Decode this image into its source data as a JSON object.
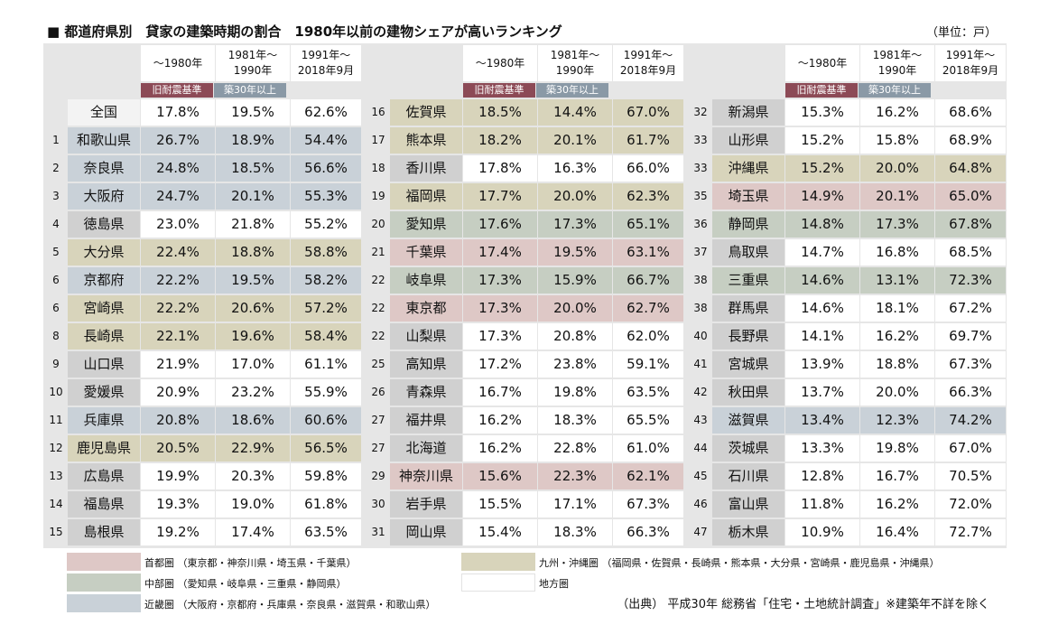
{
  "title": "■ 都道府県別　貸家の建築時期の割合　1980年以前の建物シェアが高いランキング",
  "unit": "（単位：戸）",
  "headers": {
    "col1": "〜1980年",
    "col2_line1": "1981年〜",
    "col2_line2": "1990年",
    "col3_line1": "1991年〜",
    "col3_line2": "2018年9月",
    "tag_old": "旧耐震基準",
    "tag_age": "築30年以上"
  },
  "region_colors": {
    "s": "#dec8c6",
    "ch": "#c6cec2",
    "k": "#c9d1d8",
    "c9": "#d8d4bb",
    "r": "#ffffff"
  },
  "rows": [
    {
      "rank": "",
      "pref": "全国",
      "v1": "17.8%",
      "v2": "19.5%",
      "v3": "62.6%",
      "region": "n"
    },
    {
      "rank": "1",
      "pref": "和歌山県",
      "v1": "26.7%",
      "v2": "18.9%",
      "v3": "54.4%",
      "region": "k"
    },
    {
      "rank": "2",
      "pref": "奈良県",
      "v1": "24.8%",
      "v2": "18.5%",
      "v3": "56.6%",
      "region": "k"
    },
    {
      "rank": "3",
      "pref": "大阪府",
      "v1": "24.7%",
      "v2": "20.1%",
      "v3": "55.3%",
      "region": "k"
    },
    {
      "rank": "4",
      "pref": "徳島県",
      "v1": "23.0%",
      "v2": "21.8%",
      "v3": "55.2%",
      "region": "r"
    },
    {
      "rank": "5",
      "pref": "大分県",
      "v1": "22.4%",
      "v2": "18.8%",
      "v3": "58.8%",
      "region": "c9"
    },
    {
      "rank": "6",
      "pref": "京都府",
      "v1": "22.2%",
      "v2": "19.5%",
      "v3": "58.2%",
      "region": "k"
    },
    {
      "rank": "6",
      "pref": "宮崎県",
      "v1": "22.2%",
      "v2": "20.6%",
      "v3": "57.2%",
      "region": "c9"
    },
    {
      "rank": "8",
      "pref": "長崎県",
      "v1": "22.1%",
      "v2": "19.6%",
      "v3": "58.4%",
      "region": "c9"
    },
    {
      "rank": "9",
      "pref": "山口県",
      "v1": "21.9%",
      "v2": "17.0%",
      "v3": "61.1%",
      "region": "r"
    },
    {
      "rank": "10",
      "pref": "愛媛県",
      "v1": "20.9%",
      "v2": "23.2%",
      "v3": "55.9%",
      "region": "r"
    },
    {
      "rank": "11",
      "pref": "兵庫県",
      "v1": "20.8%",
      "v2": "18.6%",
      "v3": "60.6%",
      "region": "k"
    },
    {
      "rank": "12",
      "pref": "鹿児島県",
      "v1": "20.5%",
      "v2": "22.9%",
      "v3": "56.5%",
      "region": "c9"
    },
    {
      "rank": "13",
      "pref": "広島県",
      "v1": "19.9%",
      "v2": "20.3%",
      "v3": "59.8%",
      "region": "r"
    },
    {
      "rank": "14",
      "pref": "福島県",
      "v1": "19.3%",
      "v2": "19.0%",
      "v3": "61.8%",
      "region": "r"
    },
    {
      "rank": "15",
      "pref": "島根県",
      "v1": "19.2%",
      "v2": "17.4%",
      "v3": "63.5%",
      "region": "r"
    },
    {
      "rank": "16",
      "pref": "佐賀県",
      "v1": "18.5%",
      "v2": "14.4%",
      "v3": "67.0%",
      "region": "c9"
    },
    {
      "rank": "17",
      "pref": "熊本県",
      "v1": "18.2%",
      "v2": "20.1%",
      "v3": "61.7%",
      "region": "c9"
    },
    {
      "rank": "18",
      "pref": "香川県",
      "v1": "17.8%",
      "v2": "16.3%",
      "v3": "66.0%",
      "region": "r"
    },
    {
      "rank": "19",
      "pref": "福岡県",
      "v1": "17.7%",
      "v2": "20.0%",
      "v3": "62.3%",
      "region": "c9"
    },
    {
      "rank": "20",
      "pref": "愛知県",
      "v1": "17.6%",
      "v2": "17.3%",
      "v3": "65.1%",
      "region": "ch"
    },
    {
      "rank": "21",
      "pref": "千葉県",
      "v1": "17.4%",
      "v2": "19.5%",
      "v3": "63.1%",
      "region": "s"
    },
    {
      "rank": "22",
      "pref": "岐阜県",
      "v1": "17.3%",
      "v2": "15.9%",
      "v3": "66.7%",
      "region": "ch"
    },
    {
      "rank": "22",
      "pref": "東京都",
      "v1": "17.3%",
      "v2": "20.0%",
      "v3": "62.7%",
      "region": "s"
    },
    {
      "rank": "22",
      "pref": "山梨県",
      "v1": "17.3%",
      "v2": "20.8%",
      "v3": "62.0%",
      "region": "r"
    },
    {
      "rank": "25",
      "pref": "高知県",
      "v1": "17.2%",
      "v2": "23.8%",
      "v3": "59.1%",
      "region": "r"
    },
    {
      "rank": "26",
      "pref": "青森県",
      "v1": "16.7%",
      "v2": "19.8%",
      "v3": "63.5%",
      "region": "r"
    },
    {
      "rank": "27",
      "pref": "福井県",
      "v1": "16.2%",
      "v2": "18.3%",
      "v3": "65.5%",
      "region": "r"
    },
    {
      "rank": "27",
      "pref": "北海道",
      "v1": "16.2%",
      "v2": "22.8%",
      "v3": "61.0%",
      "region": "r"
    },
    {
      "rank": "29",
      "pref": "神奈川県",
      "v1": "15.6%",
      "v2": "22.3%",
      "v3": "62.1%",
      "region": "s"
    },
    {
      "rank": "30",
      "pref": "岩手県",
      "v1": "15.5%",
      "v2": "17.1%",
      "v3": "67.3%",
      "region": "r"
    },
    {
      "rank": "31",
      "pref": "岡山県",
      "v1": "15.4%",
      "v2": "18.3%",
      "v3": "66.3%",
      "region": "r"
    },
    {
      "rank": "32",
      "pref": "新潟県",
      "v1": "15.3%",
      "v2": "16.2%",
      "v3": "68.6%",
      "region": "r"
    },
    {
      "rank": "33",
      "pref": "山形県",
      "v1": "15.2%",
      "v2": "15.8%",
      "v3": "68.9%",
      "region": "r"
    },
    {
      "rank": "33",
      "pref": "沖縄県",
      "v1": "15.2%",
      "v2": "20.0%",
      "v3": "64.8%",
      "region": "c9"
    },
    {
      "rank": "35",
      "pref": "埼玉県",
      "v1": "14.9%",
      "v2": "20.1%",
      "v3": "65.0%",
      "region": "s"
    },
    {
      "rank": "36",
      "pref": "静岡県",
      "v1": "14.8%",
      "v2": "17.3%",
      "v3": "67.8%",
      "region": "ch"
    },
    {
      "rank": "37",
      "pref": "鳥取県",
      "v1": "14.7%",
      "v2": "16.8%",
      "v3": "68.5%",
      "region": "r"
    },
    {
      "rank": "38",
      "pref": "三重県",
      "v1": "14.6%",
      "v2": "13.1%",
      "v3": "72.3%",
      "region": "ch"
    },
    {
      "rank": "38",
      "pref": "群馬県",
      "v1": "14.6%",
      "v2": "18.1%",
      "v3": "67.2%",
      "region": "r"
    },
    {
      "rank": "40",
      "pref": "長野県",
      "v1": "14.1%",
      "v2": "16.2%",
      "v3": "69.7%",
      "region": "r"
    },
    {
      "rank": "41",
      "pref": "宮城県",
      "v1": "13.9%",
      "v2": "18.8%",
      "v3": "67.3%",
      "region": "r"
    },
    {
      "rank": "42",
      "pref": "秋田県",
      "v1": "13.7%",
      "v2": "20.0%",
      "v3": "66.3%",
      "region": "r"
    },
    {
      "rank": "43",
      "pref": "滋賀県",
      "v1": "13.4%",
      "v2": "12.3%",
      "v3": "74.2%",
      "region": "k"
    },
    {
      "rank": "44",
      "pref": "茨城県",
      "v1": "13.3%",
      "v2": "19.8%",
      "v3": "67.0%",
      "region": "r"
    },
    {
      "rank": "45",
      "pref": "石川県",
      "v1": "12.8%",
      "v2": "16.7%",
      "v3": "70.5%",
      "region": "r"
    },
    {
      "rank": "46",
      "pref": "富山県",
      "v1": "11.8%",
      "v2": "16.2%",
      "v3": "72.0%",
      "region": "r"
    },
    {
      "rank": "47",
      "pref": "栃木県",
      "v1": "10.9%",
      "v2": "16.4%",
      "v3": "72.7%",
      "region": "r"
    }
  ],
  "legend": {
    "shuto": "首都圏 （東京都・神奈川県・埼玉県・千葉県）",
    "chubu": "中部圏 （愛知県・岐阜県・三重県・静岡県）",
    "kinki": "近畿圏 （大阪府・京都府・兵庫県・奈良県・滋賀県・和歌山県）",
    "kyushu": "九州・沖縄圏 （福岡県・佐賀県・長崎県・熊本県・大分県・宮崎県・鹿児島県・沖縄県）",
    "chiho": "地方圏"
  },
  "source": "（出典） 平成30年 総務省「住宅・土地統計調査」※建築年不詳を除く"
}
